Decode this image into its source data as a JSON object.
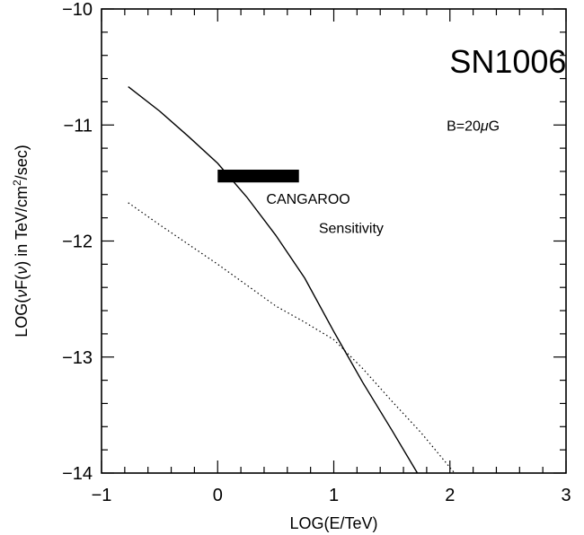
{
  "chart_data": {
    "type": "line",
    "title": "",
    "xlabel": "LOG(E/TeV)",
    "ylabel_parts": {
      "prefix": "LOG(",
      "nu1": "ν",
      "mid": "F(",
      "nu2": "ν",
      "tail": ") in TeV/cm",
      "sup": "2",
      "end": "/sec)"
    },
    "xlim": [
      -1,
      3
    ],
    "ylim": [
      -14,
      -10
    ],
    "xticks": [
      -1,
      0,
      1,
      2,
      3
    ],
    "yticks": [
      -14,
      -13,
      -12,
      -11,
      -10
    ],
    "xtick_labels": [
      "−1",
      "0",
      "1",
      "2",
      "3"
    ],
    "ytick_labels": [
      "−14",
      "−13",
      "−12",
      "−11",
      "−10"
    ],
    "grid": false,
    "series": [
      {
        "style": "solid",
        "color": "#000000",
        "points": [
          [
            -0.77,
            -10.67
          ],
          [
            -0.5,
            -10.88
          ],
          [
            -0.25,
            -11.1
          ],
          [
            0.0,
            -11.33
          ],
          [
            0.25,
            -11.62
          ],
          [
            0.5,
            -11.95
          ],
          [
            0.75,
            -12.32
          ],
          [
            1.0,
            -12.78
          ],
          [
            1.25,
            -13.22
          ],
          [
            1.5,
            -13.63
          ],
          [
            1.72,
            -14.0
          ]
        ]
      },
      {
        "style": "dotted",
        "color": "#000000",
        "points": [
          [
            -0.77,
            -11.67
          ],
          [
            -0.5,
            -11.86
          ],
          [
            -0.25,
            -12.03
          ],
          [
            0.0,
            -12.2
          ],
          [
            0.25,
            -12.38
          ],
          [
            0.5,
            -12.56
          ],
          [
            0.75,
            -12.7
          ],
          [
            1.0,
            -12.85
          ],
          [
            1.25,
            -13.1
          ],
          [
            1.5,
            -13.38
          ],
          [
            1.75,
            -13.65
          ],
          [
            2.04,
            -14.0
          ]
        ]
      }
    ],
    "bar": {
      "x": [
        0.0,
        0.7
      ],
      "y": -11.44,
      "thickness": 0.11,
      "color": "#000000"
    },
    "annotations": [
      {
        "id": "title-ann",
        "text": "SN1006",
        "x": 2.5,
        "y": -10.55
      },
      {
        "id": "b-ann",
        "text": "B=20",
        "mu": "μ",
        "tail": "G",
        "x": 2.2,
        "y": -11.05
      },
      {
        "id": "cangaroo-ann",
        "text": "CANGAROO",
        "x": 0.78,
        "y": -11.68
      },
      {
        "id": "sens-ann",
        "text": "Sensitivity",
        "x": 1.15,
        "y": -11.93
      }
    ]
  }
}
